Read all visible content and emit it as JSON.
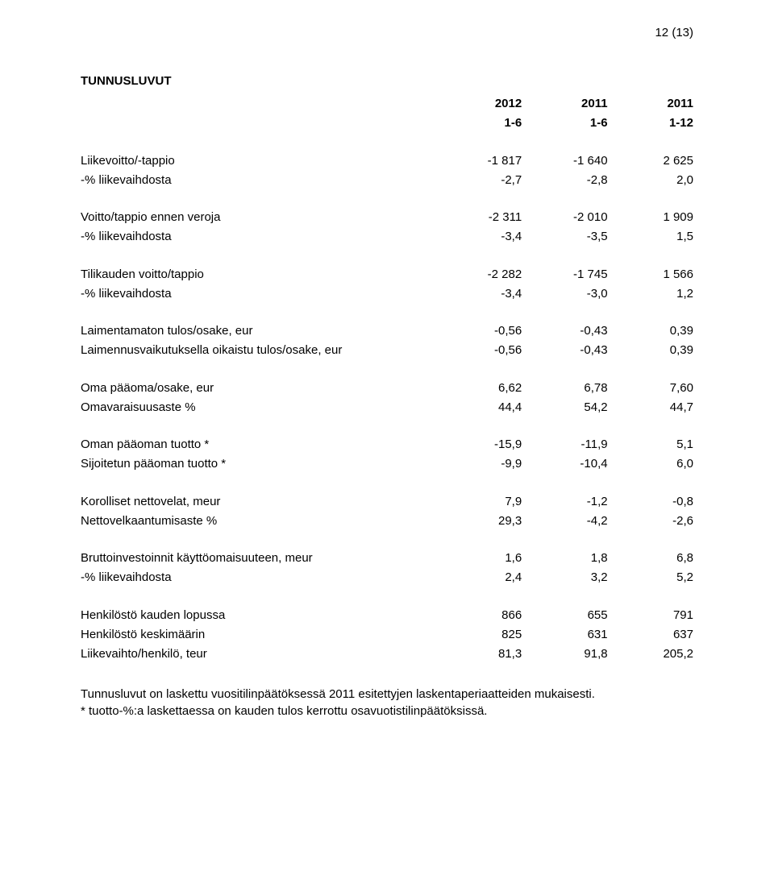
{
  "page_number": "12 (13)",
  "title": "TUNNUSLUVUT",
  "header": {
    "years": [
      "2012",
      "2011",
      "2011"
    ],
    "periods": [
      "1-6",
      "1-6",
      "1-12"
    ]
  },
  "rows": [
    {
      "label": "Liikevoitto/-tappio",
      "v": [
        "-1 817",
        "-1 640",
        "2 625"
      ]
    },
    {
      "label": "-% liikevaihdosta",
      "v": [
        "-2,7",
        "-2,8",
        "2,0"
      ]
    },
    {
      "spacer": true
    },
    {
      "label": "Voitto/tappio ennen veroja",
      "v": [
        "-2 311",
        "-2 010",
        "1 909"
      ]
    },
    {
      "label": "-% liikevaihdosta",
      "v": [
        "-3,4",
        "-3,5",
        "1,5"
      ]
    },
    {
      "spacer": true
    },
    {
      "label": "Tilikauden voitto/tappio",
      "v": [
        "-2 282",
        "-1 745",
        "1 566"
      ]
    },
    {
      "label": "-% liikevaihdosta",
      "v": [
        "-3,4",
        "-3,0",
        "1,2"
      ]
    },
    {
      "spacer": true
    },
    {
      "label": "Laimentamaton tulos/osake, eur",
      "v": [
        "-0,56",
        "-0,43",
        "0,39"
      ]
    },
    {
      "label": "Laimennusvaikutuksella oikaistu tulos/osake, eur",
      "v": [
        "-0,56",
        "-0,43",
        "0,39"
      ]
    },
    {
      "spacer": true
    },
    {
      "label": "Oma pääoma/osake, eur",
      "v": [
        "6,62",
        "6,78",
        "7,60"
      ]
    },
    {
      "label": "Omavaraisuusaste %",
      "v": [
        "44,4",
        "54,2",
        "44,7"
      ]
    },
    {
      "spacer": true
    },
    {
      "label": "Oman pääoman tuotto *",
      "v": [
        "-15,9",
        "-11,9",
        "5,1"
      ]
    },
    {
      "label": "Sijoitetun pääoman tuotto *",
      "v": [
        "-9,9",
        "-10,4",
        "6,0"
      ]
    },
    {
      "spacer": true
    },
    {
      "label": "Korolliset nettovelat, meur",
      "v": [
        "7,9",
        "-1,2",
        "-0,8"
      ]
    },
    {
      "label": "Nettovelkaantumisaste %",
      "v": [
        "29,3",
        "-4,2",
        "-2,6"
      ]
    },
    {
      "spacer": true
    },
    {
      "label": "Bruttoinvestoinnit käyttöomaisuuteen, meur",
      "v": [
        "1,6",
        "1,8",
        "6,8"
      ]
    },
    {
      "label": "-% liikevaihdosta",
      "v": [
        "2,4",
        "3,2",
        "5,2"
      ]
    },
    {
      "spacer": true
    },
    {
      "label": "Henkilöstö kauden lopussa",
      "v": [
        "866",
        "655",
        "791"
      ]
    },
    {
      "label": "Henkilöstö keskimäärin",
      "v": [
        "825",
        "631",
        "637"
      ]
    },
    {
      "label": "Liikevaihto/henkilö, teur",
      "v": [
        "81,3",
        "91,8",
        "205,2"
      ]
    }
  ],
  "notes": [
    "Tunnusluvut on laskettu vuositilinpäätöksessä 2011 esitettyjen laskentaperiaatteiden mukaisesti.",
    "* tuotto-%:a laskettaessa on kauden tulos kerrottu osavuotistilinpäätöksissä."
  ]
}
